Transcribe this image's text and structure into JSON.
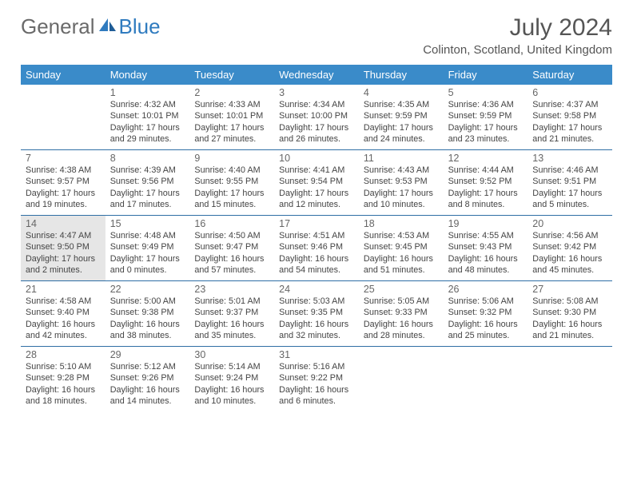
{
  "brand": {
    "general": "General",
    "blue": "Blue"
  },
  "title": "July 2024",
  "location": "Colinton, Scotland, United Kingdom",
  "colors": {
    "header_bg": "#3a8bc9",
    "header_text": "#ffffff",
    "row_border": "#2f6fa5",
    "today_bg": "#e6e6e6",
    "text": "#444444",
    "brand_gray": "#6a6a6a",
    "brand_blue": "#2f7bbf"
  },
  "day_names": [
    "Sunday",
    "Monday",
    "Tuesday",
    "Wednesday",
    "Thursday",
    "Friday",
    "Saturday"
  ],
  "first_weekday_offset": 1,
  "today_day": 14,
  "days": [
    {
      "n": 1,
      "sunrise": "4:32 AM",
      "sunset": "10:01 PM",
      "dl": "17 hours and 29 minutes."
    },
    {
      "n": 2,
      "sunrise": "4:33 AM",
      "sunset": "10:01 PM",
      "dl": "17 hours and 27 minutes."
    },
    {
      "n": 3,
      "sunrise": "4:34 AM",
      "sunset": "10:00 PM",
      "dl": "17 hours and 26 minutes."
    },
    {
      "n": 4,
      "sunrise": "4:35 AM",
      "sunset": "9:59 PM",
      "dl": "17 hours and 24 minutes."
    },
    {
      "n": 5,
      "sunrise": "4:36 AM",
      "sunset": "9:59 PM",
      "dl": "17 hours and 23 minutes."
    },
    {
      "n": 6,
      "sunrise": "4:37 AM",
      "sunset": "9:58 PM",
      "dl": "17 hours and 21 minutes."
    },
    {
      "n": 7,
      "sunrise": "4:38 AM",
      "sunset": "9:57 PM",
      "dl": "17 hours and 19 minutes."
    },
    {
      "n": 8,
      "sunrise": "4:39 AM",
      "sunset": "9:56 PM",
      "dl": "17 hours and 17 minutes."
    },
    {
      "n": 9,
      "sunrise": "4:40 AM",
      "sunset": "9:55 PM",
      "dl": "17 hours and 15 minutes."
    },
    {
      "n": 10,
      "sunrise": "4:41 AM",
      "sunset": "9:54 PM",
      "dl": "17 hours and 12 minutes."
    },
    {
      "n": 11,
      "sunrise": "4:43 AM",
      "sunset": "9:53 PM",
      "dl": "17 hours and 10 minutes."
    },
    {
      "n": 12,
      "sunrise": "4:44 AM",
      "sunset": "9:52 PM",
      "dl": "17 hours and 8 minutes."
    },
    {
      "n": 13,
      "sunrise": "4:46 AM",
      "sunset": "9:51 PM",
      "dl": "17 hours and 5 minutes."
    },
    {
      "n": 14,
      "sunrise": "4:47 AM",
      "sunset": "9:50 PM",
      "dl": "17 hours and 2 minutes."
    },
    {
      "n": 15,
      "sunrise": "4:48 AM",
      "sunset": "9:49 PM",
      "dl": "17 hours and 0 minutes."
    },
    {
      "n": 16,
      "sunrise": "4:50 AM",
      "sunset": "9:47 PM",
      "dl": "16 hours and 57 minutes."
    },
    {
      "n": 17,
      "sunrise": "4:51 AM",
      "sunset": "9:46 PM",
      "dl": "16 hours and 54 minutes."
    },
    {
      "n": 18,
      "sunrise": "4:53 AM",
      "sunset": "9:45 PM",
      "dl": "16 hours and 51 minutes."
    },
    {
      "n": 19,
      "sunrise": "4:55 AM",
      "sunset": "9:43 PM",
      "dl": "16 hours and 48 minutes."
    },
    {
      "n": 20,
      "sunrise": "4:56 AM",
      "sunset": "9:42 PM",
      "dl": "16 hours and 45 minutes."
    },
    {
      "n": 21,
      "sunrise": "4:58 AM",
      "sunset": "9:40 PM",
      "dl": "16 hours and 42 minutes."
    },
    {
      "n": 22,
      "sunrise": "5:00 AM",
      "sunset": "9:38 PM",
      "dl": "16 hours and 38 minutes."
    },
    {
      "n": 23,
      "sunrise": "5:01 AM",
      "sunset": "9:37 PM",
      "dl": "16 hours and 35 minutes."
    },
    {
      "n": 24,
      "sunrise": "5:03 AM",
      "sunset": "9:35 PM",
      "dl": "16 hours and 32 minutes."
    },
    {
      "n": 25,
      "sunrise": "5:05 AM",
      "sunset": "9:33 PM",
      "dl": "16 hours and 28 minutes."
    },
    {
      "n": 26,
      "sunrise": "5:06 AM",
      "sunset": "9:32 PM",
      "dl": "16 hours and 25 minutes."
    },
    {
      "n": 27,
      "sunrise": "5:08 AM",
      "sunset": "9:30 PM",
      "dl": "16 hours and 21 minutes."
    },
    {
      "n": 28,
      "sunrise": "5:10 AM",
      "sunset": "9:28 PM",
      "dl": "16 hours and 18 minutes."
    },
    {
      "n": 29,
      "sunrise": "5:12 AM",
      "sunset": "9:26 PM",
      "dl": "16 hours and 14 minutes."
    },
    {
      "n": 30,
      "sunrise": "5:14 AM",
      "sunset": "9:24 PM",
      "dl": "16 hours and 10 minutes."
    },
    {
      "n": 31,
      "sunrise": "5:16 AM",
      "sunset": "9:22 PM",
      "dl": "16 hours and 6 minutes."
    }
  ],
  "labels": {
    "sunrise": "Sunrise: ",
    "sunset": "Sunset: ",
    "daylight": "Daylight: "
  }
}
